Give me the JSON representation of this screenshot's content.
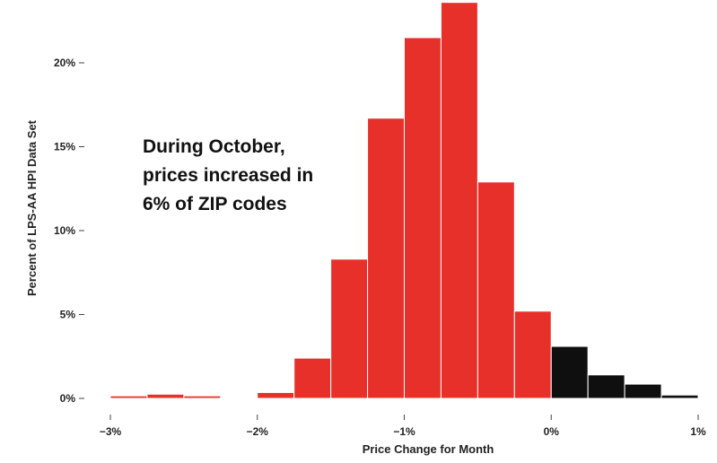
{
  "chart_data": {
    "type": "bar",
    "title": "",
    "xlabel": "Price Change for Month",
    "ylabel": "Percent of LPS-AA HPI Data Set",
    "xlim": [
      -3,
      1
    ],
    "ylim": [
      0,
      23.5
    ],
    "x_ticks": [
      {
        "value": -3,
        "label": "−3%"
      },
      {
        "value": -2,
        "label": "−2%"
      },
      {
        "value": -1,
        "label": "−1%"
      },
      {
        "value": 0,
        "label": "0%"
      },
      {
        "value": 1,
        "label": "1%"
      }
    ],
    "y_ticks": [
      {
        "value": 0,
        "label": "0%"
      },
      {
        "value": 5,
        "label": "5%"
      },
      {
        "value": 10,
        "label": "10%"
      },
      {
        "value": 15,
        "label": "15%"
      },
      {
        "value": 20,
        "label": "20%"
      }
    ],
    "bin_width": 0.25,
    "bins": [
      {
        "start": -3.0,
        "value": 0.15
      },
      {
        "start": -2.75,
        "value": 0.25
      },
      {
        "start": -2.5,
        "value": 0.15
      },
      {
        "start": -2.25,
        "value": 0
      },
      {
        "start": -2.0,
        "value": 0.35
      },
      {
        "start": -1.75,
        "value": 2.4
      },
      {
        "start": -1.5,
        "value": 8.3
      },
      {
        "start": -1.25,
        "value": 16.7
      },
      {
        "start": -1.0,
        "value": 21.5
      },
      {
        "start": -0.75,
        "value": 23.6
      },
      {
        "start": -0.5,
        "value": 12.9
      },
      {
        "start": -0.25,
        "value": 5.2
      },
      {
        "start": 0.0,
        "value": 3.1
      },
      {
        "start": 0.25,
        "value": 1.4
      },
      {
        "start": 0.5,
        "value": 0.85
      },
      {
        "start": 0.75,
        "value": 0.2
      }
    ],
    "colors": {
      "decrease": "#e8302a",
      "increase": "#0f0f0f"
    },
    "grid": false,
    "annotation": [
      "During October,",
      "prices increased in",
      "6% of ZIP codes"
    ]
  }
}
